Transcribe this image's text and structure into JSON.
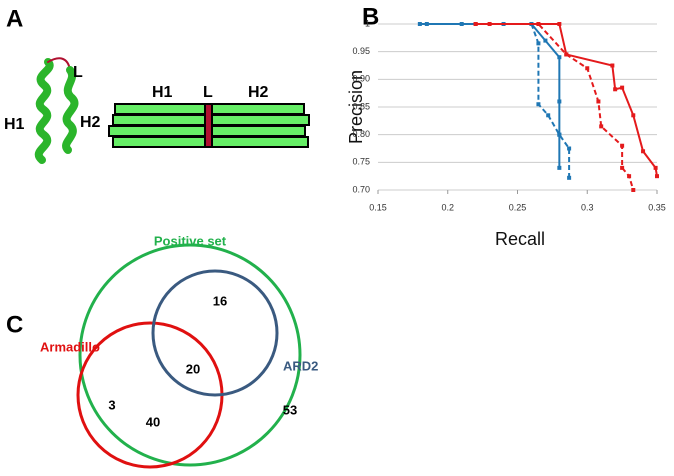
{
  "panels": {
    "a": "A",
    "b": "B",
    "c": "C"
  },
  "structure": {
    "helix_labels": [
      "L",
      "H1",
      "H2"
    ],
    "bar_labels": [
      "H1",
      "L",
      "H2"
    ]
  },
  "chart_data": {
    "type": "line",
    "xlabel": "Recall",
    "ylabel": "Precision",
    "xlim": [
      0.15,
      0.35
    ],
    "xticks": [
      0.15,
      0.2,
      0.25,
      0.3,
      0.35
    ],
    "ylim": [
      0.7,
      1
    ],
    "yticks": [
      {
        "value": 0.7,
        "label": "0.70"
      },
      0.75,
      {
        "value": 0.8,
        "label": "0.80"
      },
      0.85,
      {
        "value": 0.9,
        "label": "0.90"
      },
      0.95,
      1
    ],
    "grid": true,
    "series": [
      {
        "color": "#1f77b4",
        "style": "solid",
        "x": [
          0.18,
          0.185,
          0.21,
          0.24,
          0.26,
          0.27,
          0.28,
          0.28,
          0.28,
          0.28
        ],
        "y": [
          1,
          1,
          1,
          1,
          1,
          0.97,
          0.94,
          0.86,
          0.8,
          0.74
        ]
      },
      {
        "color": "#1f77b4",
        "style": "dashed",
        "x": [
          0.26,
          0.265,
          0.265,
          0.272,
          0.28,
          0.287,
          0.287
        ],
        "y": [
          1,
          0.965,
          0.855,
          0.835,
          0.8,
          0.775,
          0.722
        ]
      },
      {
        "color": "#e41a1c",
        "style": "solid",
        "x": [
          0.22,
          0.28,
          0.285,
          0.318,
          0.32,
          0.325,
          0.333,
          0.34,
          0.349,
          0.35
        ],
        "y": [
          1,
          1,
          0.945,
          0.925,
          0.882,
          0.885,
          0.835,
          0.77,
          0.74,
          0.725
        ]
      },
      {
        "color": "#e41a1c",
        "style": "dashed",
        "x": [
          0.22,
          0.23,
          0.265,
          0.285,
          0.3,
          0.308,
          0.31,
          0.325,
          0.325,
          0.33,
          0.333
        ],
        "y": [
          1,
          1,
          1,
          0.945,
          0.92,
          0.86,
          0.815,
          0.78,
          0.74,
          0.725,
          0.7
        ]
      }
    ]
  },
  "venn": {
    "sets": [
      "Positive set",
      "Armadillo",
      "ARD2"
    ],
    "regions": [
      "16",
      "20",
      "3",
      "40",
      "53"
    ]
  }
}
